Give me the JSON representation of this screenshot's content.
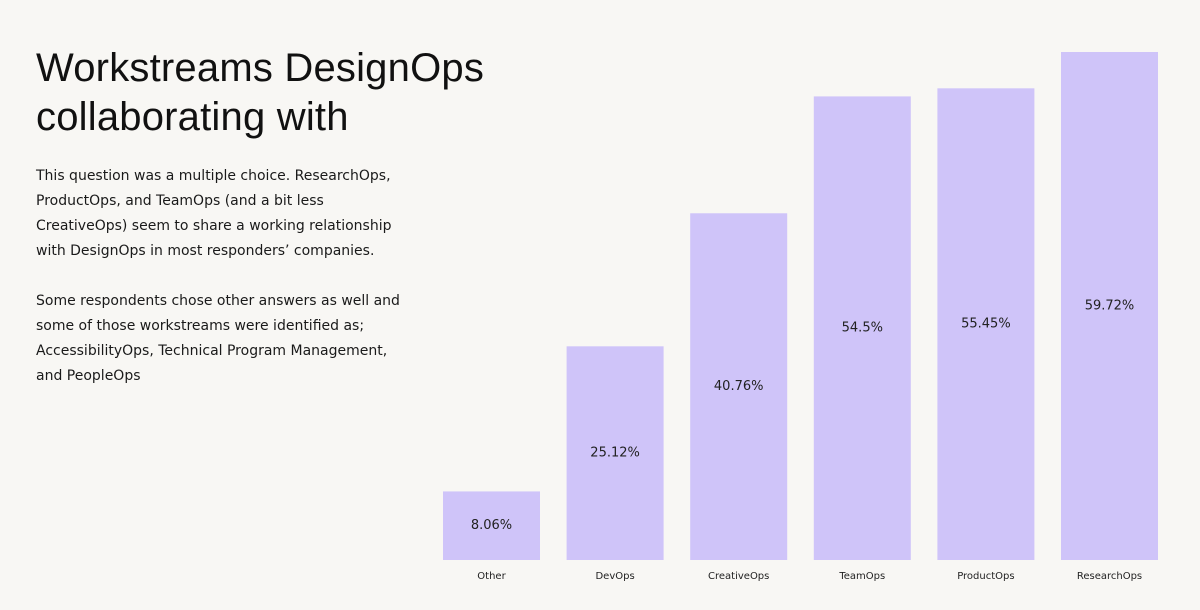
{
  "chart_data": {
    "type": "bar",
    "title": "Workstreams DesignOps collaborating with",
    "paragraphs": [
      "This question was a multiple choice. ResearchOps, ProductOps, and TeamOps (and a bit less CreativeOps) seem to share a working relationship with DesignOps in most responders’ companies.",
      "Some respondents chose other answers as well and some of those workstreams were identified as; AccessibilityOps, Technical Program Management, and PeopleOps"
    ],
    "categories": [
      "Other",
      "DevOps",
      "CreativeOps",
      "TeamOps",
      "ProductOps",
      "ResearchOps"
    ],
    "values": [
      8.06,
      25.12,
      40.76,
      54.5,
      55.45,
      59.72
    ],
    "value_labels": [
      "8.06%",
      "25.12%",
      "40.76%",
      "54.5%",
      "55.45%",
      "59.72%"
    ],
    "color": "#cfc4f9"
  }
}
